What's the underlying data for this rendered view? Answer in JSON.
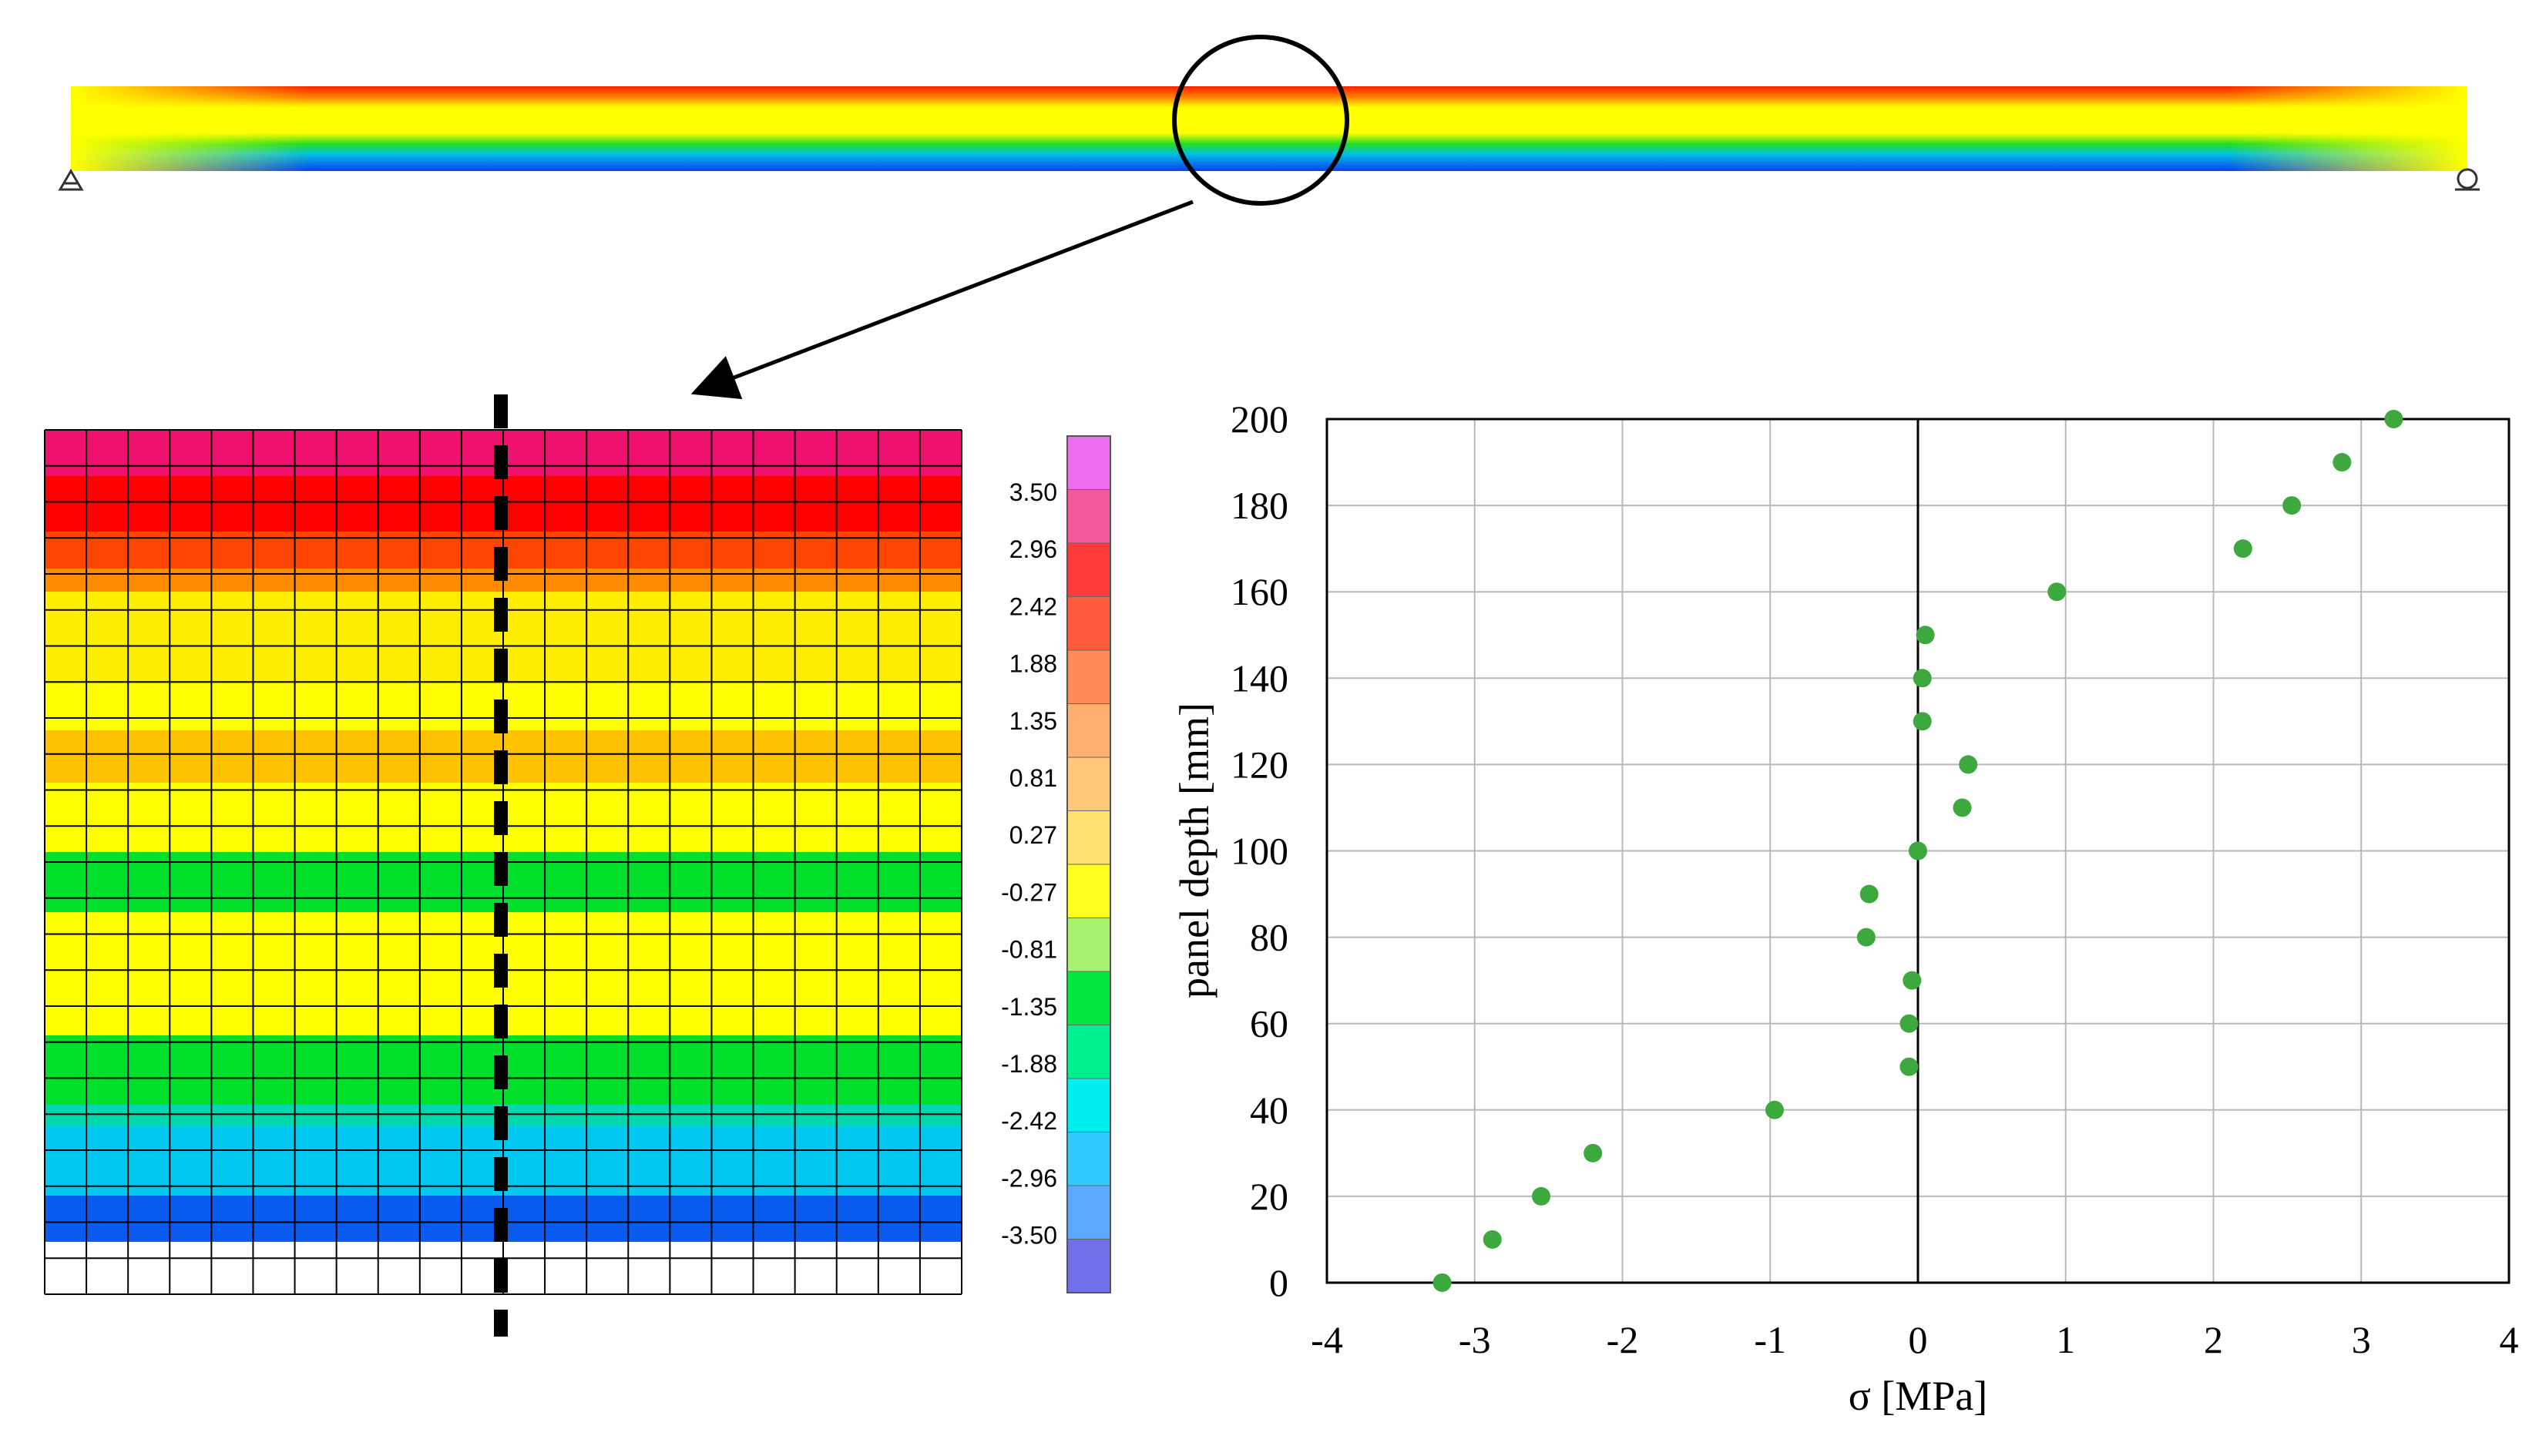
{
  "colors": {
    "marker": "#3da83d",
    "grid": "#b8b8b8",
    "mesh": "#000000",
    "scale": [
      "#ee6cee",
      "#f25a9a",
      "#ff3a3a",
      "#ff5a3c",
      "#ff8a5a",
      "#ffb070",
      "#ffc878",
      "#ffe070",
      "#ffff20",
      "#a8f070",
      "#00e840",
      "#00f090",
      "#00eeee",
      "#30c8ff",
      "#5aa8ff",
      "#7070e8"
    ]
  },
  "contour_bands": [
    {
      "color": "#f0106e"
    },
    {
      "color": "#ff0000"
    },
    {
      "color": "#ff4500"
    },
    {
      "color": "#ff8c00"
    },
    {
      "color": "#ffee00"
    },
    {
      "color": "#ffff00"
    },
    {
      "color": "#ffc200"
    },
    {
      "color": "#ffff00"
    },
    {
      "color": "#00e02a"
    },
    {
      "color": "#ffff00"
    },
    {
      "color": "#00e02a"
    },
    {
      "color": "#00d8b0"
    },
    {
      "color": "#00c8f0"
    },
    {
      "color": "#0a5cf0"
    }
  ],
  "legend": {
    "labels": [
      "3.50",
      "2.96",
      "2.42",
      "1.88",
      "1.35",
      "0.81",
      "0.27",
      "-0.27",
      "-0.81",
      "-1.35",
      "-1.88",
      "-2.42",
      "-2.96",
      "-3.50"
    ]
  },
  "chart_data": {
    "type": "scatter",
    "xlabel": "σ [MPa]",
    "ylabel": "panel depth [mm]",
    "xlim": [
      -4,
      4
    ],
    "ylim": [
      0,
      200
    ],
    "x_ticks": [
      "-4",
      "-3",
      "-2",
      "-1",
      "0",
      "1",
      "2",
      "3",
      "4"
    ],
    "y_ticks": [
      "0",
      "20",
      "40",
      "60",
      "80",
      "100",
      "120",
      "140",
      "160",
      "180",
      "200"
    ],
    "grid": true,
    "zero_line": true,
    "points": [
      {
        "x": -3.22,
        "y": 0
      },
      {
        "x": -2.88,
        "y": 10
      },
      {
        "x": -2.55,
        "y": 20
      },
      {
        "x": -2.2,
        "y": 30
      },
      {
        "x": -0.97,
        "y": 40
      },
      {
        "x": -0.06,
        "y": 50
      },
      {
        "x": -0.06,
        "y": 60
      },
      {
        "x": -0.04,
        "y": 70
      },
      {
        "x": -0.35,
        "y": 80
      },
      {
        "x": -0.33,
        "y": 90
      },
      {
        "x": 0.0,
        "y": 100
      },
      {
        "x": 0.3,
        "y": 110
      },
      {
        "x": 0.34,
        "y": 120
      },
      {
        "x": 0.03,
        "y": 130
      },
      {
        "x": 0.03,
        "y": 140
      },
      {
        "x": 0.05,
        "y": 150
      },
      {
        "x": 0.94,
        "y": 160
      },
      {
        "x": 2.2,
        "y": 170
      },
      {
        "x": 2.53,
        "y": 180
      },
      {
        "x": 2.87,
        "y": 190
      },
      {
        "x": 3.22,
        "y": 200
      }
    ]
  }
}
